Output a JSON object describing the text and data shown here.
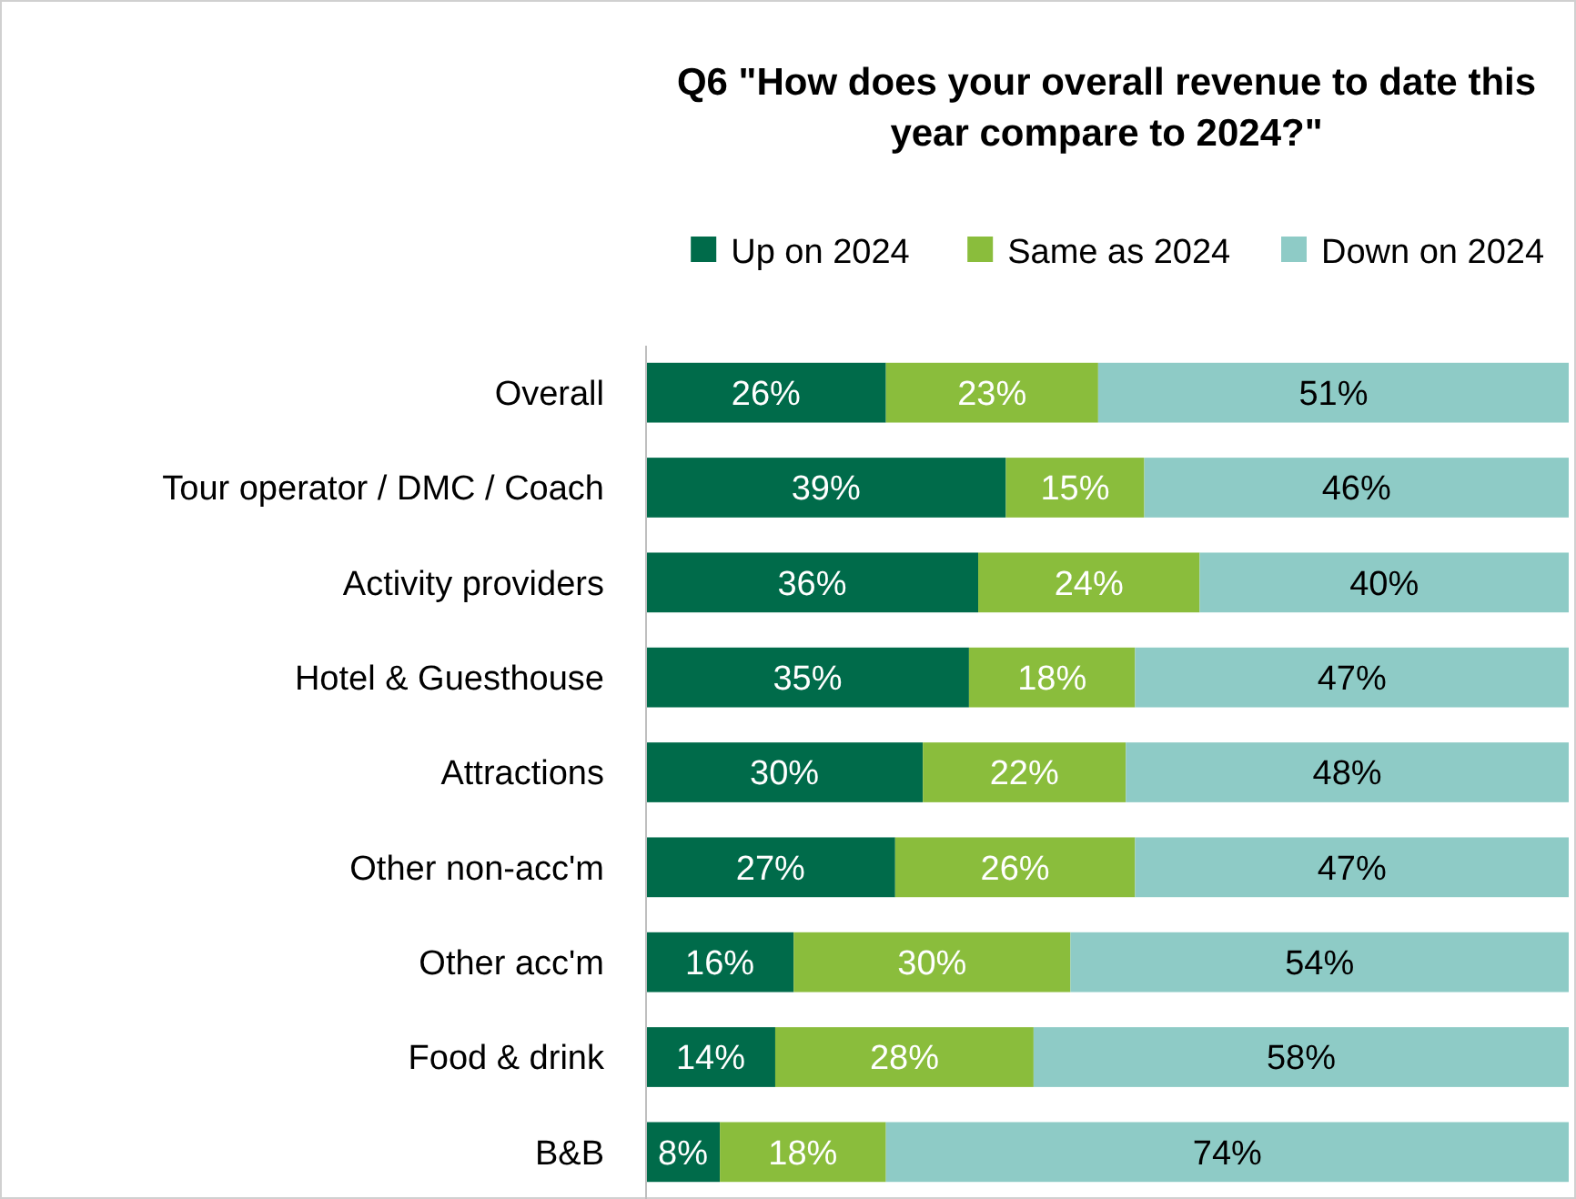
{
  "chart_data": {
    "type": "bar",
    "orientation": "horizontal",
    "stacked": true,
    "legend": "top",
    "title": "Q6 \"How does your overall revenue to date this year compare to 2024?\"",
    "categories": [
      "Overall",
      "Tour operator / DMC / Coach",
      "Activity providers",
      "Hotel & Guesthouse",
      "Attractions",
      "Other non-acc'm",
      "Other acc'm",
      "Food & drink",
      "B&B"
    ],
    "series": [
      {
        "name": "Up on 2024",
        "color": "#006b4a",
        "values": [
          26,
          39,
          36,
          35,
          30,
          27,
          16,
          14,
          8
        ],
        "value_labels": [
          "26%",
          "39%",
          "36%",
          "35%",
          "30%",
          "27%",
          "16%",
          "14%",
          "8%"
        ]
      },
      {
        "name": "Same as 2024",
        "color": "#8abd3c",
        "values": [
          23,
          15,
          24,
          18,
          22,
          26,
          30,
          28,
          18
        ],
        "value_labels": [
          "23%",
          "15%",
          "24%",
          "18%",
          "22%",
          "26%",
          "30%",
          "28%",
          "18%"
        ]
      },
      {
        "name": "Down on 2024",
        "color": "#8ecbc6",
        "values": [
          51,
          46,
          40,
          47,
          48,
          47,
          54,
          58,
          74
        ],
        "value_labels": [
          "51%",
          "46%",
          "40%",
          "47%",
          "48%",
          "47%",
          "54%",
          "58%",
          "74%"
        ]
      }
    ]
  }
}
